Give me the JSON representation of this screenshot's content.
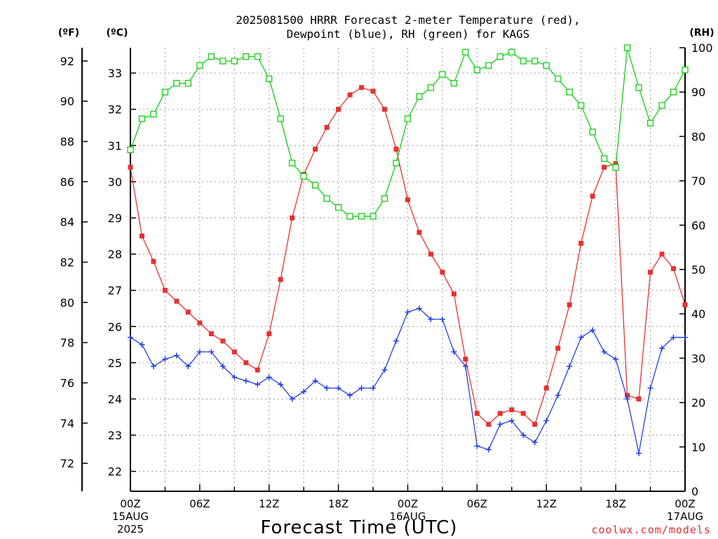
{
  "title_line1": "2025081500 HRRR Forecast 2-meter Temperature (red),",
  "title_line2": "Dewpoint (blue), RH (green) for KAGS",
  "unit_f": "(ºF)",
  "unit_c": "(ºC)",
  "unit_rh": "(RH)",
  "xlabel": "Forecast Time (UTC)",
  "credit": "coolwx.com/models",
  "colors": {
    "temperature": "#e83030",
    "dewpoint": "#2040e0",
    "rh": "#10d010",
    "grid": "#9a9a9a"
  },
  "chart_data": {
    "type": "line",
    "x_hours": [
      0,
      1,
      2,
      3,
      4,
      5,
      6,
      7,
      8,
      9,
      10,
      11,
      12,
      13,
      14,
      15,
      16,
      17,
      18,
      19,
      20,
      21,
      22,
      23,
      24,
      25,
      26,
      27,
      28,
      29,
      30,
      31,
      32,
      33,
      34,
      35,
      36,
      37,
      38,
      39,
      40,
      41,
      42,
      43,
      44,
      45,
      46,
      47,
      48
    ],
    "x_ticks": [
      {
        "hour": 0,
        "lines": [
          "00Z",
          "15AUG",
          "2025"
        ]
      },
      {
        "hour": 6,
        "lines": [
          "06Z"
        ]
      },
      {
        "hour": 12,
        "lines": [
          "12Z"
        ]
      },
      {
        "hour": 18,
        "lines": [
          "18Z"
        ]
      },
      {
        "hour": 24,
        "lines": [
          "00Z",
          "16AUG"
        ]
      },
      {
        "hour": 30,
        "lines": [
          "06Z"
        ]
      },
      {
        "hour": 36,
        "lines": [
          "12Z"
        ]
      },
      {
        "hour": 42,
        "lines": [
          "18Z"
        ]
      },
      {
        "hour": 48,
        "lines": [
          "00Z",
          "17AUG"
        ]
      }
    ],
    "y_celsius_ticks": [
      22,
      23,
      24,
      25,
      26,
      27,
      28,
      29,
      30,
      31,
      32,
      33
    ],
    "y_celsius_range": [
      21.45,
      33.7
    ],
    "y_fahrenheit_ticks": [
      72,
      74,
      76,
      78,
      80,
      82,
      84,
      86,
      88,
      90,
      92
    ],
    "y_rh_ticks": [
      0,
      10,
      20,
      30,
      40,
      50,
      60,
      70,
      80,
      90,
      100
    ],
    "y_rh_range": [
      0,
      100
    ],
    "grid": true,
    "series": [
      {
        "name": "Temperature",
        "key": "temperature",
        "marker": "filled-square",
        "axis": "celsius",
        "values": [
          30.4,
          28.5,
          27.8,
          27.0,
          26.7,
          26.4,
          26.1,
          25.8,
          25.6,
          25.3,
          25.0,
          24.8,
          25.8,
          27.3,
          29.0,
          30.2,
          30.9,
          31.5,
          32.0,
          32.4,
          32.6,
          32.5,
          32.0,
          30.9,
          29.5,
          28.6,
          28.0,
          27.5,
          26.9,
          25.1,
          23.6,
          23.3,
          23.6,
          23.7,
          23.6,
          23.3,
          24.3,
          25.4,
          26.6,
          28.3,
          29.6,
          30.4,
          30.5,
          24.1,
          24.0,
          27.5,
          28.0,
          27.6,
          26.6
        ]
      },
      {
        "name": "Dewpoint",
        "key": "dewpoint",
        "marker": "plus",
        "axis": "celsius",
        "values": [
          25.7,
          25.5,
          24.9,
          25.1,
          25.2,
          24.9,
          25.3,
          25.3,
          24.9,
          24.6,
          24.5,
          24.4,
          24.6,
          24.4,
          24.0,
          24.2,
          24.5,
          24.3,
          24.3,
          24.1,
          24.3,
          24.3,
          24.8,
          25.6,
          26.4,
          26.5,
          26.2,
          26.2,
          25.3,
          24.9,
          22.7,
          22.6,
          23.3,
          23.4,
          23.0,
          22.8,
          23.4,
          24.1,
          24.9,
          25.7,
          25.9,
          25.3,
          25.1,
          24.0,
          22.5,
          24.3,
          25.4,
          25.7,
          25.7
        ]
      },
      {
        "name": "RH",
        "key": "rh",
        "marker": "open-square",
        "axis": "rh",
        "values": [
          77,
          84,
          85,
          90,
          92,
          92,
          96,
          98,
          97,
          97,
          98,
          98,
          93,
          84,
          74,
          71,
          69,
          66,
          64,
          62,
          62,
          62,
          66,
          74,
          84,
          89,
          91,
          94,
          92,
          99,
          95,
          96,
          98,
          99,
          97,
          97,
          96,
          93,
          90,
          87,
          81,
          75,
          73,
          100,
          91,
          83,
          87,
          90,
          95
        ]
      }
    ]
  }
}
